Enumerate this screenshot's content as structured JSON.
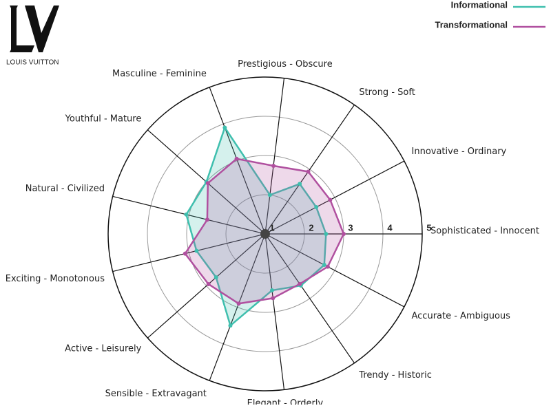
{
  "logo": {
    "text": "LOUIS VUITTON"
  },
  "chart_data": {
    "type": "radar",
    "categories": [
      "Sophisticated - Innocent",
      "Innovative - Ordinary",
      "Strong - Soft",
      "Prestigious - Obscure",
      "Masculine - Feminine",
      "Youthful - Mature",
      "Natural - Civilized",
      "Exciting - Monotonous",
      "Active - Leisurely",
      "Sensible - Extravagant",
      "Elegant - Orderly",
      "Trendy - Historic",
      "Accurate - Ambiguous"
    ],
    "series": [
      {
        "name": "Informational",
        "color": "#3fbfae",
        "values": [
          2.55,
          2.47,
          2.55,
          2.0,
          3.9,
          3.0,
          3.07,
          2.8,
          2.67,
          3.5,
          2.45,
          2.6,
          2.7
        ]
      },
      {
        "name": "Transformational",
        "color": "#b0509f",
        "values": [
          3.0,
          2.87,
          2.93,
          2.75,
          3.05,
          2.95,
          2.52,
          3.1,
          2.93,
          2.9,
          2.65,
          2.55,
          2.8
        ]
      }
    ],
    "ylim": [
      1,
      5
    ],
    "yticks": [
      1,
      2,
      3,
      4,
      5
    ],
    "grid": true,
    "legend": "top-right"
  }
}
